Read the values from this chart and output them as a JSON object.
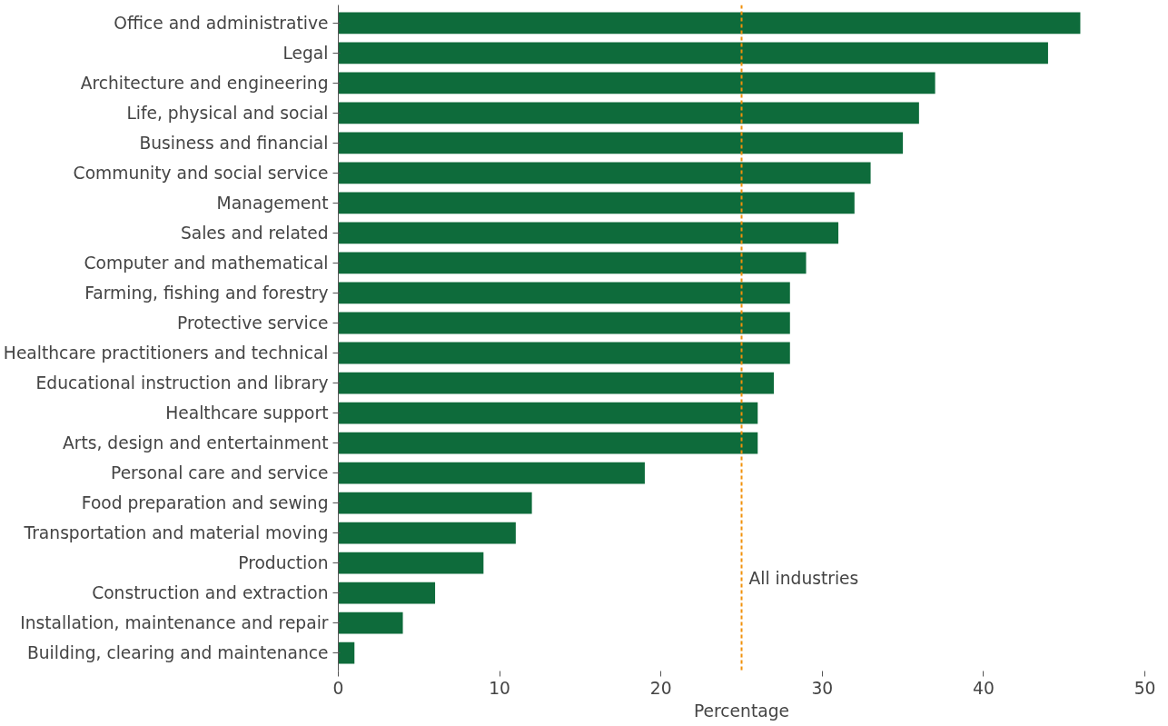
{
  "chart_data": {
    "type": "bar",
    "orientation": "horizontal",
    "xlabel": "Percentage",
    "categories": [
      "Office and administrative",
      "Legal",
      "Architecture and engineering",
      "Life, physical and social",
      "Business and financial",
      "Community and social service",
      "Management",
      "Sales and related",
      "Computer and mathematical",
      "Farming, fishing and forestry",
      "Protective service",
      "Healthcare practitioners and technical",
      "Educational instruction and library",
      "Healthcare support",
      "Arts, design and entertainment",
      "Personal care and service",
      "Food preparation and sewing",
      "Transportation and material moving",
      "Production",
      "Construction and extraction",
      "Installation, maintenance and repair",
      "Building, clearing and maintenance"
    ],
    "values": [
      46,
      44,
      37,
      36,
      35,
      33,
      32,
      31,
      29,
      28,
      28,
      28,
      27,
      26,
      26,
      19,
      12,
      11,
      9,
      6,
      4,
      1
    ],
    "color": "#0e6b3b",
    "xlim": [
      0,
      50
    ],
    "xticks": [
      0,
      10,
      20,
      30,
      40,
      50
    ],
    "grid": false,
    "ref_lines": [
      {
        "axis": "x",
        "value": 25,
        "label": "All industries",
        "color": "#f0900a",
        "line_style": "dashed"
      }
    ]
  }
}
